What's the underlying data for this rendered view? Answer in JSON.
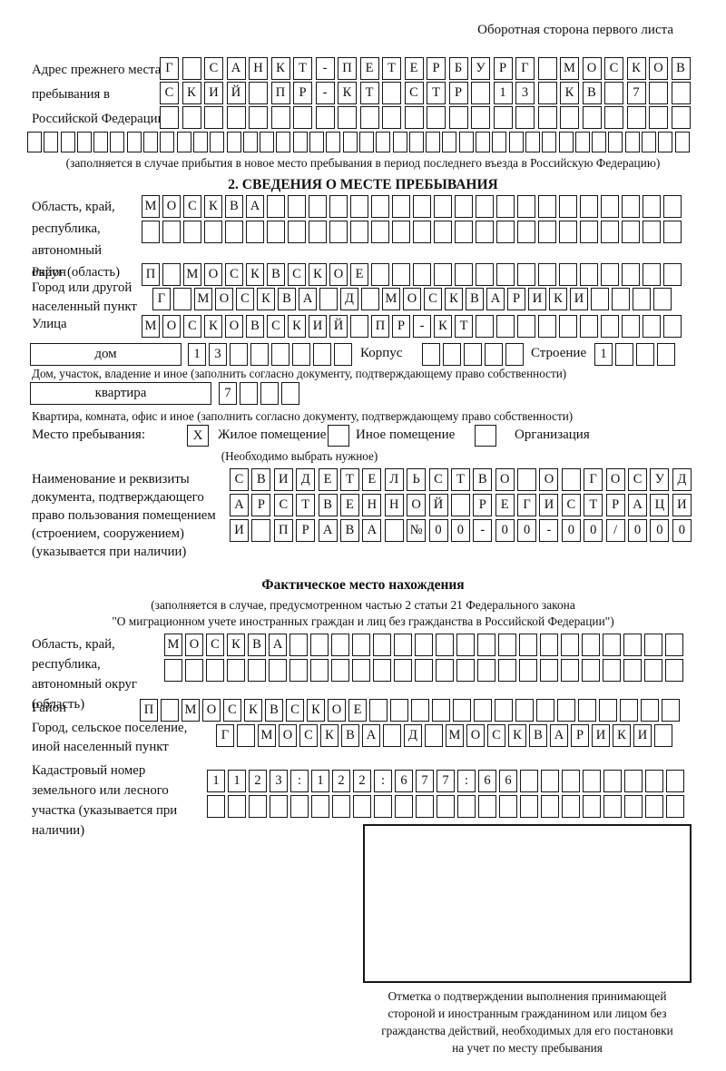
{
  "page": {
    "header_note": "Оборотная сторона первого листа"
  },
  "prev_address": {
    "label": "Адрес прежнего места пребывания в Российской Федерации",
    "rows": [
      [
        "Г",
        "",
        "С",
        "А",
        "Н",
        "К",
        "Т",
        "-",
        "П",
        "Е",
        "Т",
        "Е",
        "Р",
        "Б",
        "У",
        "Р",
        "Г",
        "",
        "М",
        "О",
        "С",
        "К",
        "О",
        "В"
      ],
      [
        "С",
        "К",
        "И",
        "Й",
        "",
        "П",
        "Р",
        "-",
        "К",
        "Т",
        "",
        "С",
        "Т",
        "Р",
        "",
        "1",
        "3",
        "",
        "К",
        "В",
        "",
        "7",
        "",
        ""
      ],
      [
        "",
        "",
        "",
        "",
        "",
        "",
        "",
        "",
        "",
        "",
        "",
        "",
        "",
        "",
        "",
        "",
        "",
        "",
        "",
        "",
        "",
        "",
        "",
        ""
      ],
      [
        "",
        "",
        "",
        "",
        "",
        "",
        "",
        "",
        "",
        "",
        "",
        "",
        "",
        "",
        "",
        "",
        "",
        "",
        "",
        "",
        "",
        "",
        "",
        "",
        "",
        "",
        "",
        "",
        "",
        "",
        "",
        "",
        "",
        "",
        "",
        "",
        "",
        "",
        "",
        ""
      ]
    ],
    "note": "(заполняется в случае прибытия в новое место пребывания в период последнего въезда в Российскую Федерацию)"
  },
  "section2": {
    "title": "2. СВЕДЕНИЯ О МЕСТЕ ПРЕБЫВАНИЯ",
    "region": {
      "label": "Область, край, республика, автономный округ (область)",
      "rows": [
        [
          "М",
          "О",
          "С",
          "К",
          "В",
          "А",
          "",
          "",
          "",
          "",
          "",
          "",
          "",
          "",
          "",
          "",
          "",
          "",
          "",
          "",
          "",
          "",
          "",
          "",
          "",
          ""
        ],
        [
          "",
          "",
          "",
          "",
          "",
          "",
          "",
          "",
          "",
          "",
          "",
          "",
          "",
          "",
          "",
          "",
          "",
          "",
          "",
          "",
          "",
          "",
          "",
          "",
          "",
          ""
        ]
      ]
    },
    "district": {
      "label": "Район",
      "row": [
        "П",
        "",
        "М",
        "О",
        "С",
        "К",
        "В",
        "С",
        "К",
        "О",
        "Е",
        "",
        "",
        "",
        "",
        "",
        "",
        "",
        "",
        "",
        "",
        "",
        "",
        "",
        "",
        ""
      ]
    },
    "city": {
      "label": "Город или другой населенный пункт",
      "row": [
        "Г",
        "",
        "М",
        "О",
        "С",
        "К",
        "В",
        "А",
        "",
        "Д",
        "",
        "М",
        "О",
        "С",
        "К",
        "В",
        "А",
        "Р",
        "И",
        "К",
        "И",
        "",
        "",
        "",
        ""
      ]
    },
    "street": {
      "label": "Улица",
      "row": [
        "М",
        "О",
        "С",
        "К",
        "О",
        "В",
        "С",
        "К",
        "И",
        "Й",
        "",
        "П",
        "Р",
        "-",
        "К",
        "Т",
        "",
        "",
        "",
        "",
        "",
        "",
        "",
        "",
        "",
        ""
      ]
    },
    "house": {
      "box_label": "дом",
      "cells": [
        "1",
        "3",
        "",
        "",
        "",
        "",
        "",
        ""
      ],
      "korpus_label": "Корпус",
      "korpus_cells": [
        "",
        "",
        "",
        "",
        ""
      ],
      "stroenie_label": "Строение",
      "stroenie_cells": [
        "1",
        "",
        "",
        ""
      ],
      "note": "Дом, участок, владение и иное (заполнить согласно документу, подтверждающему право собственности)"
    },
    "apartment": {
      "box_label": "квартира",
      "cells": [
        "7",
        "",
        "",
        ""
      ],
      "note": "Квартира, комната, офис и иное (заполнить согласно документу, подтверждающему право собственности)"
    },
    "stay": {
      "label": "Место пребывания:",
      "options": [
        {
          "mark": "X",
          "label": "Жилое помещение"
        },
        {
          "mark": "",
          "label": "Иное помещение"
        },
        {
          "mark": "",
          "label": "Организация"
        }
      ],
      "note": "(Необходимо выбрать нужное)"
    },
    "document": {
      "label": "Наименование и реквизиты документа, подтверждающего право пользования помещением (строением, сооружением) (указывается при наличии)",
      "rows": [
        [
          "С",
          "В",
          "И",
          "Д",
          "Е",
          "Т",
          "Е",
          "Л",
          "Ь",
          "С",
          "Т",
          "В",
          "О",
          "",
          "О",
          "",
          "Г",
          "О",
          "С",
          "У",
          "Д"
        ],
        [
          "А",
          "Р",
          "С",
          "Т",
          "В",
          "Е",
          "Н",
          "Н",
          "О",
          "Й",
          "",
          "Р",
          "Е",
          "Г",
          "И",
          "С",
          "Т",
          "Р",
          "А",
          "Ц",
          "И"
        ],
        [
          "И",
          "",
          "П",
          "Р",
          "А",
          "В",
          "А",
          "",
          "№",
          "0",
          "0",
          "-",
          "0",
          "0",
          "-",
          "0",
          "0",
          "/",
          "0",
          "0",
          "0"
        ]
      ]
    }
  },
  "actual_location": {
    "title": "Фактическое место нахождения",
    "note_line1": "(заполняется в случае, предусмотренном частью 2 статьи 21 Федерального закона",
    "note_line2": "\"О миграционном учете иностранных граждан и лиц без гражданства в Российской Федерации\")",
    "region": {
      "label": "Область, край, республика, автономный округ (область)",
      "rows": [
        [
          "М",
          "О",
          "С",
          "К",
          "В",
          "А",
          "",
          "",
          "",
          "",
          "",
          "",
          "",
          "",
          "",
          "",
          "",
          "",
          "",
          "",
          "",
          "",
          "",
          "",
          ""
        ],
        [
          "",
          "",
          "",
          "",
          "",
          "",
          "",
          "",
          "",
          "",
          "",
          "",
          "",
          "",
          "",
          "",
          "",
          "",
          "",
          "",
          "",
          "",
          "",
          "",
          ""
        ]
      ]
    },
    "district": {
      "label": "Район",
      "row": [
        "П",
        "",
        "М",
        "О",
        "С",
        "К",
        "В",
        "С",
        "К",
        "О",
        "Е",
        "",
        "",
        "",
        "",
        "",
        "",
        "",
        "",
        "",
        "",
        "",
        "",
        "",
        "",
        ""
      ]
    },
    "city": {
      "label": "Город, сельское поселение, иной населенный пункт",
      "row": [
        "Г",
        "",
        "М",
        "О",
        "С",
        "К",
        "В",
        "А",
        "",
        "Д",
        "",
        "М",
        "О",
        "С",
        "К",
        "В",
        "А",
        "Р",
        "И",
        "К",
        "И",
        ""
      ]
    },
    "cadastral": {
      "label": "Кадастровый номер земельного или лесного участка (указывается при наличии)",
      "rows": [
        [
          "1",
          "1",
          "2",
          "3",
          ":",
          "1",
          "2",
          "2",
          ":",
          "6",
          "7",
          "7",
          ":",
          "6",
          "6",
          "",
          "",
          "",
          "",
          "",
          "",
          "",
          ""
        ],
        [
          "",
          "",
          "",
          "",
          "",
          "",
          "",
          "",
          "",
          "",
          "",
          "",
          "",
          "",
          "",
          "",
          "",
          "",
          "",
          "",
          "",
          "",
          ""
        ]
      ]
    }
  },
  "confirmation": {
    "note": "Отметка о подтверждении выполнения принимающей\nстороной и иностранным гражданином или лицом без\nгражданства действий, необходимых для его постановки\nна учет по месту пребывания"
  }
}
